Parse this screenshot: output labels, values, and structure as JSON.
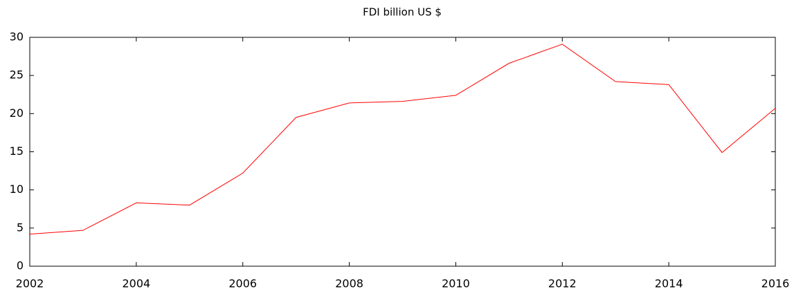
{
  "chart_data": {
    "type": "line",
    "title": "FDI billion US $",
    "x": [
      2002,
      2003,
      2004,
      2005,
      2006,
      2007,
      2008,
      2009,
      2010,
      2011,
      2012,
      2013,
      2014,
      2015,
      2016
    ],
    "values": [
      4.2,
      4.7,
      8.3,
      8.0,
      12.2,
      19.5,
      21.4,
      21.6,
      22.4,
      26.6,
      29.1,
      24.2,
      23.8,
      14.9,
      20.7
    ],
    "color": "#ff0000",
    "xlim": [
      2002,
      2016
    ],
    "xticks": [
      2002,
      2004,
      2006,
      2008,
      2010,
      2012,
      2014,
      2016
    ],
    "ylim": [
      0,
      30
    ],
    "yticks": [
      0,
      5,
      10,
      15,
      20,
      25,
      30
    ],
    "grid": false
  }
}
